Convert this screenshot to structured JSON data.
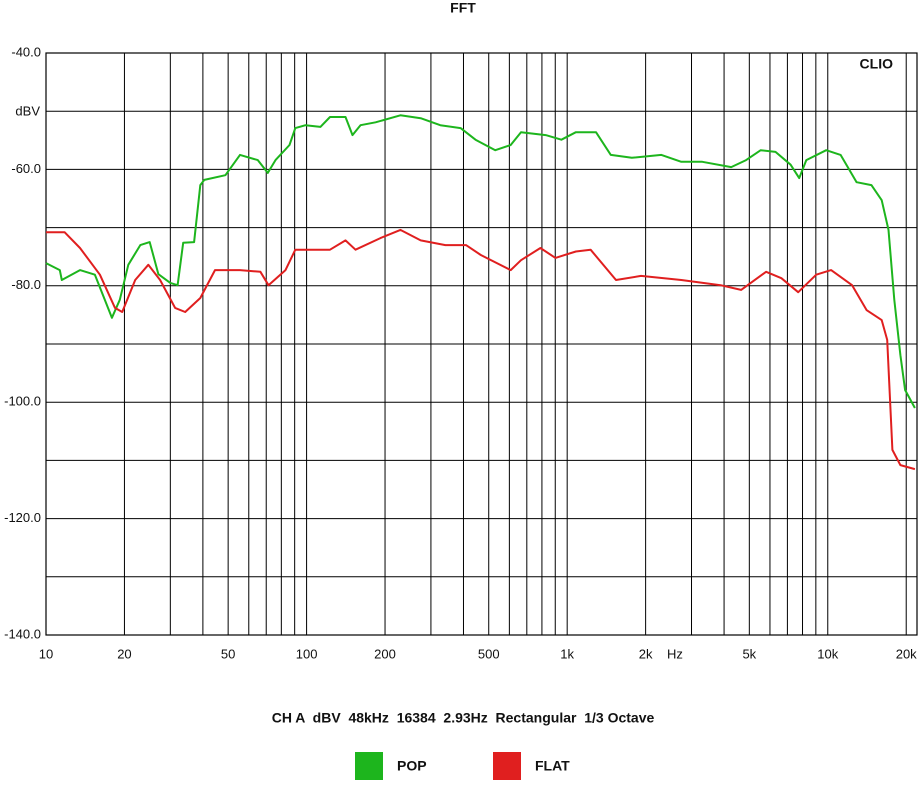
{
  "chart_data": {
    "type": "line",
    "title": "FFT",
    "ylabel": "dBV",
    "xlabel": "Hz",
    "corner_label": "CLIO",
    "footer": "CH A  dBV  48kHz  16384  2.93Hz  Rectangular  1/3 Octave",
    "xscale": "log",
    "xlim": [
      10,
      22000
    ],
    "ylim": [
      -140,
      -40
    ],
    "xticks": [
      10,
      20,
      50,
      100,
      200,
      500,
      {
        "value": 1000,
        "label": "1k"
      },
      {
        "value": 2000,
        "label": "2k"
      },
      {
        "value": 5000,
        "label": "5k"
      },
      {
        "value": 10000,
        "label": "10k"
      },
      {
        "value": 20000,
        "label": "20k"
      }
    ],
    "yticks": [
      {
        "value": -40,
        "label": "-40.0"
      },
      {
        "value": -60,
        "label": "-60.0"
      },
      {
        "value": -80,
        "label": "-80.0"
      },
      {
        "value": -100,
        "label": "-100.0"
      },
      {
        "value": -120,
        "label": "-120.0"
      },
      {
        "value": -140,
        "label": "-140.0"
      }
    ],
    "xminor": [
      30,
      40,
      60,
      70,
      80,
      90,
      300,
      400,
      600,
      700,
      800,
      900,
      3000,
      4000,
      6000,
      7000,
      8000,
      9000
    ],
    "yminor": [
      -130,
      -110,
      -90,
      -70,
      -50
    ],
    "grid": true,
    "series": [
      {
        "name": "POP",
        "color": "#1db51d",
        "x": [
          10,
          11.3,
          11.5,
          13.5,
          15.4,
          17.9,
          19.2,
          20.7,
          23,
          25,
          27,
          30,
          32,
          33.6,
          37,
          39.1,
          40.5,
          48.8,
          55.5,
          65,
          71,
          76,
          86,
          90.5,
          99,
          113,
          123,
          141,
          150,
          161,
          184,
          229,
          274,
          326,
          390,
          445,
          530,
          607,
          665,
          827,
          950,
          1080,
          1290,
          1470,
          1770,
          2300,
          2740,
          3300,
          4260,
          4860,
          5530,
          6300,
          7200,
          7770,
          8270,
          9860,
          11200,
          12900,
          14700,
          16100,
          17100,
          18000,
          19000,
          19800,
          21600
        ],
        "values": [
          -76.1,
          -77.3,
          -79,
          -77.3,
          -78.1,
          -85.5,
          -82.4,
          -76.4,
          -73,
          -72.5,
          -78,
          -79.5,
          -79.9,
          -72.6,
          -72.5,
          -62.7,
          -61.8,
          -61,
          -57.5,
          -58.4,
          -60.6,
          -58.4,
          -55.8,
          -52.9,
          -52.4,
          -52.7,
          -51,
          -51,
          -54.1,
          -52.4,
          -51.9,
          -50.7,
          -51.2,
          -52.4,
          -52.9,
          -54.9,
          -56.7,
          -55.8,
          -53.6,
          -54.1,
          -54.9,
          -53.6,
          -53.6,
          -57.5,
          -58,
          -57.5,
          -58.7,
          -58.7,
          -59.6,
          -58.4,
          -56.7,
          -57,
          -59.2,
          -61.5,
          -58.4,
          -56.7,
          -57.5,
          -62.2,
          -62.7,
          -65.3,
          -70.4,
          -82.4,
          -91.9,
          -97.9,
          -101
        ]
      },
      {
        "name": "FLAT",
        "color": "#e01f1f",
        "x": [
          10,
          11.8,
          13.5,
          16.1,
          18.4,
          19.6,
          22,
          24.7,
          27.4,
          31.3,
          34.2,
          39.1,
          44.5,
          55.5,
          66.5,
          71.4,
          83,
          90.5,
          123,
          141,
          154,
          192,
          229,
          274,
          341,
          409,
          466,
          607,
          665,
          789,
          901,
          1080,
          1230,
          1540,
          1920,
          2740,
          3880,
          4650,
          5800,
          6640,
          7700,
          9030,
          10300,
          12400,
          14100,
          16100,
          16900,
          17700,
          19000,
          21600
        ],
        "values": [
          -70.8,
          -70.8,
          -73.5,
          -78.1,
          -83.8,
          -84.5,
          -79,
          -76.4,
          -79,
          -83.8,
          -84.5,
          -82.1,
          -77.3,
          -77.3,
          -77.6,
          -79.9,
          -77.3,
          -73.8,
          -73.8,
          -72.2,
          -73.8,
          -71.8,
          -70.4,
          -72.2,
          -73,
          -73,
          -74.7,
          -77.3,
          -75.6,
          -73.5,
          -75.2,
          -74.1,
          -73.8,
          -79,
          -78.3,
          -79,
          -79.9,
          -80.7,
          -77.6,
          -78.7,
          -81.1,
          -78.1,
          -77.3,
          -79.9,
          -84.2,
          -85.9,
          -89.3,
          -108.2,
          -110.8,
          -111.5
        ]
      }
    ]
  }
}
